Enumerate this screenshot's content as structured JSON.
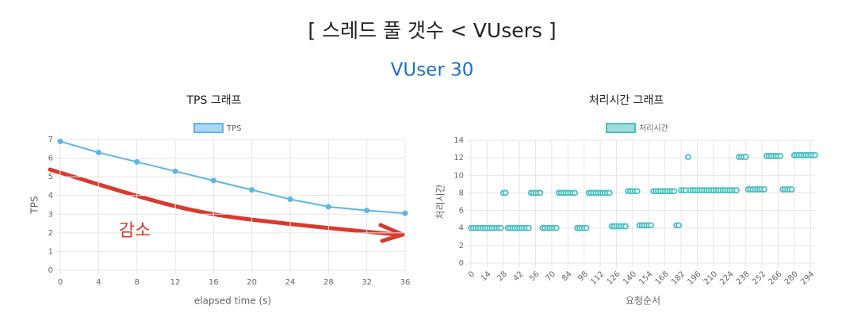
{
  "header": {
    "title": "[ 스레드 풀 갯수 < VUsers ]",
    "subtitle": "VUser 30"
  },
  "chart_data": [
    {
      "type": "line",
      "title": "TPS 그래프",
      "x_label": "elapsed time (s)",
      "y_label": "TPS",
      "annotation": "감소",
      "x": [
        0,
        4,
        8,
        12,
        16,
        20,
        24,
        28,
        32,
        36
      ],
      "series": [
        {
          "name": "TPS",
          "color": "#5db6e8",
          "values": [
            6.9,
            6.3,
            5.8,
            5.3,
            4.8,
            4.3,
            3.8,
            3.4,
            3.2,
            3.05
          ]
        }
      ],
      "xlim": [
        0,
        36
      ],
      "xticks": [
        0,
        4,
        8,
        12,
        16,
        20,
        24,
        28,
        32,
        36
      ],
      "ylim": [
        0,
        7
      ],
      "yticks": [
        0,
        1,
        2,
        3,
        4,
        5,
        6,
        7
      ],
      "grid": true
    },
    {
      "type": "scatter",
      "title": "처리시간 그래프",
      "x_label": "요청순서",
      "y_label": "처리시간",
      "x": [
        0,
        2,
        4,
        6,
        8,
        10,
        12,
        14,
        16,
        18,
        20,
        22,
        24,
        26,
        28,
        30,
        32,
        34,
        36,
        38,
        40,
        42,
        44,
        46,
        48,
        50,
        52,
        54,
        56,
        58,
        60,
        62,
        64,
        66,
        68,
        70,
        72,
        74,
        76,
        78,
        80,
        82,
        84,
        86,
        88,
        90,
        92,
        94,
        96,
        98,
        100,
        102,
        104,
        106,
        108,
        110,
        112,
        114,
        116,
        118,
        120,
        122,
        124,
        126,
        128,
        130,
        132,
        134,
        136,
        138,
        140,
        142,
        144,
        146,
        148,
        150,
        152,
        154,
        156,
        158,
        160,
        162,
        164,
        166,
        168,
        170,
        172,
        174,
        176,
        178,
        180,
        182,
        184,
        186,
        188,
        190,
        192,
        194,
        196,
        198,
        200,
        202,
        204,
        206,
        208,
        210,
        212,
        214,
        216,
        218,
        220,
        222,
        224,
        226,
        228,
        230,
        232,
        234,
        236,
        238,
        240,
        242,
        244,
        246,
        248,
        250,
        252,
        254,
        256,
        258,
        260,
        262,
        264,
        266,
        268,
        270,
        272,
        274,
        276,
        278,
        280,
        282,
        284,
        286,
        288,
        290,
        292,
        294,
        296,
        298
      ],
      "series": [
        {
          "name": "처리시간",
          "color": "#4bc0c0",
          "values": [
            4,
            4,
            4,
            4,
            4,
            4,
            4,
            4,
            4,
            4,
            4,
            4,
            4,
            4,
            8,
            8,
            4,
            4,
            4,
            4,
            4,
            4,
            4,
            4,
            4,
            4,
            8,
            8,
            8,
            8,
            8,
            4,
            4,
            4,
            4,
            4,
            4,
            4,
            8,
            8,
            8,
            8,
            8,
            8,
            8,
            8,
            4,
            4,
            4,
            4,
            4,
            8,
            8,
            8,
            8,
            8,
            8,
            8,
            8,
            8,
            8,
            4.2,
            4.2,
            4.2,
            4.2,
            4.2,
            4.2,
            4.2,
            8.2,
            8.2,
            8.2,
            8.2,
            8.2,
            4.3,
            4.3,
            4.3,
            4.3,
            4.3,
            4.3,
            8.2,
            8.2,
            8.2,
            8.2,
            8.2,
            8.2,
            8.2,
            8.2,
            8.2,
            8.2,
            4.3,
            4.3,
            8.3,
            8.3,
            8.3,
            12.1,
            8.3,
            8.3,
            8.3,
            8.3,
            8.3,
            8.3,
            8.3,
            8.3,
            8.3,
            8.3,
            8.3,
            8.3,
            8.3,
            8.3,
            8.3,
            8.3,
            8.3,
            8.3,
            8.3,
            8.3,
            8.3,
            12.1,
            12.1,
            12.1,
            12.1,
            8.4,
            8.4,
            8.4,
            8.4,
            8.4,
            8.4,
            8.4,
            8.4,
            12.2,
            12.2,
            12.2,
            12.2,
            12.2,
            12.2,
            12.2,
            8.4,
            8.4,
            8.4,
            8.4,
            8.4,
            12.3,
            12.3,
            12.3,
            12.3,
            12.3,
            12.3,
            12.3,
            12.3,
            12.3,
            12.3
          ]
        }
      ],
      "xlim": [
        0,
        298
      ],
      "xticks": [
        0,
        14,
        28,
        42,
        56,
        70,
        84,
        98,
        112,
        126,
        140,
        154,
        168,
        182,
        196,
        210,
        224,
        238,
        252,
        266,
        280,
        294
      ],
      "ylim": [
        0,
        14
      ],
      "yticks": [
        0,
        2,
        4,
        6,
        8,
        10,
        12,
        14
      ],
      "grid": true
    }
  ]
}
